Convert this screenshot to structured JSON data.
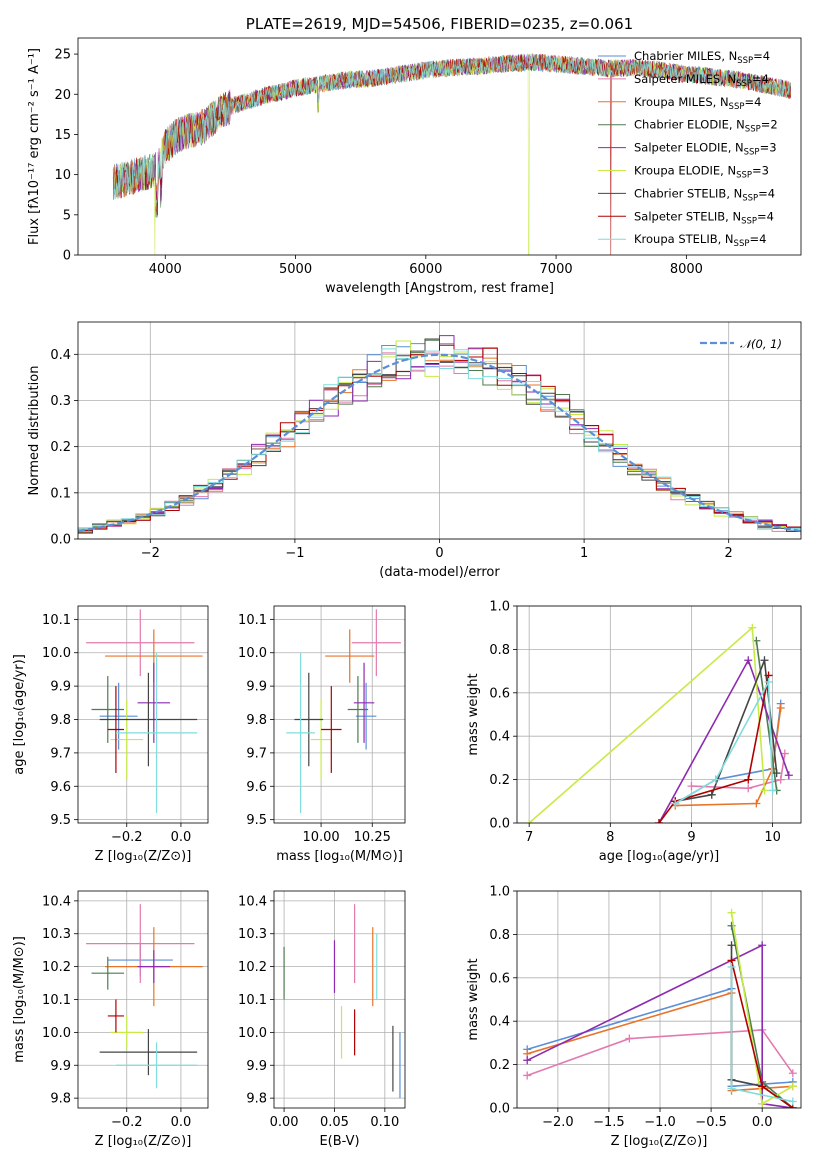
{
  "colors": {
    "Chabrier MILES": "#5b8fd6",
    "Salpeter MILES": "#e27aaf",
    "Kroupa MILES": "#e8742a",
    "Chabrier ELODIE": "#4e7b4e",
    "Salpeter ELODIE": "#8e2ab0",
    "Kroupa ELODIE": "#c7ea46",
    "Chabrier STELIB": "#444444",
    "Salpeter STELIB": "#b00000",
    "Kroupa STELIB": "#7fdddd"
  },
  "chart_data": [
    {
      "id": "spectrum",
      "type": "line",
      "title": "PLATE=2619, MJD=54506, FIBERID=0235, z=0.061",
      "xlabel": "wavelength [Angstrom, rest frame]",
      "ylabel": "Flux [fλ10⁻¹⁷ erg cm⁻² s⁻¹ A⁻¹]",
      "xlim": [
        3330,
        8880
      ],
      "ylim": [
        0,
        27
      ],
      "xticks": [
        4000,
        5000,
        6000,
        7000,
        8000
      ],
      "yticks": [
        0,
        5,
        10,
        15,
        20,
        25
      ],
      "grid": false,
      "legend_position": "top-right",
      "legend": [
        {
          "series": "Chabrier MILES",
          "label": "Chabrier MILES, N",
          "sub": "SSP",
          "suffix": "=4"
        },
        {
          "series": "Salpeter MILES",
          "label": "Salpeter MILES, N",
          "sub": "SSP",
          "suffix": "=4"
        },
        {
          "series": "Kroupa MILES",
          "label": "Kroupa MILES, N",
          "sub": "SSP",
          "suffix": "=4"
        },
        {
          "series": "Chabrier ELODIE",
          "label": "Chabrier ELODIE, N",
          "sub": "SSP",
          "suffix": "=2"
        },
        {
          "series": "Salpeter ELODIE",
          "label": "Salpeter ELODIE, N",
          "sub": "SSP",
          "suffix": "=3"
        },
        {
          "series": "Kroupa ELODIE",
          "label": "Kroupa ELODIE, N",
          "sub": "SSP",
          "suffix": "=3"
        },
        {
          "series": "Chabrier STELIB",
          "label": "Chabrier STELIB, N",
          "sub": "SSP",
          "suffix": "=4"
        },
        {
          "series": "Salpeter STELIB",
          "label": "Salpeter STELIB, N",
          "sub": "SSP",
          "suffix": "=4"
        },
        {
          "series": "Kroupa STELIB",
          "label": "Kroupa STELIB, N",
          "sub": "SSP",
          "suffix": "=4"
        }
      ],
      "data_continuum": {
        "x": [
          3600,
          3700,
          3800,
          3900,
          3950,
          4000,
          4100,
          4200,
          4300,
          4400,
          4500,
          4600,
          4700,
          4800,
          4900,
          5000,
          5200,
          5400,
          5600,
          5800,
          6000,
          6200,
          6400,
          6600,
          6800,
          7000,
          7200,
          7400,
          7600,
          7800,
          8000,
          8200,
          8400,
          8600,
          8800
        ],
        "y": [
          9,
          9.5,
          10,
          10.5,
          11,
          13.5,
          15,
          15.5,
          16,
          17.5,
          18.5,
          19,
          19.5,
          20,
          20.3,
          20.8,
          21.3,
          21.8,
          22,
          22.5,
          23,
          23.3,
          23.5,
          23.8,
          24,
          23.8,
          23.5,
          23.2,
          23.3,
          23,
          22.5,
          22.2,
          21.8,
          21.2,
          20.5
        ]
      },
      "bad_pixels": [
        {
          "x": 3920,
          "series": "Kroupa ELODIE"
        },
        {
          "x": 6790,
          "series": "Kroupa ELODIE"
        },
        {
          "x": 7420,
          "series": "Salpeter STELIB"
        }
      ]
    },
    {
      "id": "residuals",
      "type": "histogram",
      "xlabel": "(data-model)/error",
      "ylabel": "Normed distribution",
      "xlim": [
        -2.5,
        2.5
      ],
      "ylim": [
        0,
        0.47
      ],
      "xticks": [
        -2,
        -1,
        0,
        1,
        2
      ],
      "yticks": [
        0.0,
        0.1,
        0.2,
        0.3,
        0.4
      ],
      "grid": true,
      "legend_position": "top-right",
      "legend": [
        {
          "label": "𝒩(0, 1)",
          "color": "#5b8fd6",
          "style": "dashed"
        }
      ],
      "normal_reference": {
        "mean": 0,
        "sigma": 1
      },
      "bin_width": 0.1
    },
    {
      "id": "age-vs-Z",
      "type": "errorbar",
      "xlabel": "Z [log₁₀(Z/Z⊙)]",
      "ylabel": "age  [log₁₀(age/yr)]",
      "xlim": [
        -0.38,
        0.1
      ],
      "ylim": [
        9.49,
        10.14
      ],
      "xticks": [
        -0.2,
        0.0
      ],
      "yticks": [
        9.5,
        9.6,
        9.7,
        9.8,
        9.9,
        10.0,
        10.1
      ],
      "grid": true,
      "points": [
        {
          "series": "Chabrier MILES",
          "x": -0.23,
          "y": 9.81,
          "xerr": 0.07,
          "yerr": 0.1
        },
        {
          "series": "Salpeter MILES",
          "x": -0.15,
          "y": 10.03,
          "xerr": 0.2,
          "yerr": 0.1
        },
        {
          "series": "Kroupa MILES",
          "x": -0.1,
          "y": 9.99,
          "xerr": 0.18,
          "yerr": 0.08
        },
        {
          "series": "Chabrier ELODIE",
          "x": -0.27,
          "y": 9.83,
          "xerr": 0.06,
          "yerr": 0.1
        },
        {
          "series": "Salpeter ELODIE",
          "x": -0.1,
          "y": 9.85,
          "xerr": 0.06,
          "yerr": 0.12
        },
        {
          "series": "Kroupa ELODIE",
          "x": -0.2,
          "y": 9.74,
          "xerr": 0.06,
          "yerr": 0.12
        },
        {
          "series": "Chabrier STELIB",
          "x": -0.12,
          "y": 9.8,
          "xerr": 0.18,
          "yerr": 0.14
        },
        {
          "series": "Salpeter STELIB",
          "x": -0.24,
          "y": 9.77,
          "xerr": 0.03,
          "yerr": 0.13
        },
        {
          "series": "Kroupa STELIB",
          "x": -0.09,
          "y": 9.76,
          "xerr": 0.15,
          "yerr": 0.24
        }
      ]
    },
    {
      "id": "age-vs-mass",
      "type": "errorbar",
      "xlabel": "mass [log₁₀(M/M⊙)]",
      "ylabel": "",
      "xlim": [
        9.77,
        10.41
      ],
      "ylim": [
        9.49,
        10.14
      ],
      "xticks": [
        10.0,
        10.25
      ],
      "yticks": [
        9.5,
        9.6,
        9.7,
        9.8,
        9.9,
        10.0,
        10.1
      ],
      "grid": true,
      "points": [
        {
          "series": "Chabrier MILES",
          "x": 10.22,
          "y": 9.81,
          "xerr": 0.05,
          "yerr": 0.1
        },
        {
          "series": "Salpeter MILES",
          "x": 10.27,
          "y": 10.03,
          "xerr": 0.12,
          "yerr": 0.1
        },
        {
          "series": "Kroupa MILES",
          "x": 10.14,
          "y": 9.99,
          "xerr": 0.12,
          "yerr": 0.08
        },
        {
          "series": "Chabrier ELODIE",
          "x": 10.18,
          "y": 9.83,
          "xerr": 0.05,
          "yerr": 0.1
        },
        {
          "series": "Salpeter ELODIE",
          "x": 10.21,
          "y": 9.85,
          "xerr": 0.05,
          "yerr": 0.12
        },
        {
          "series": "Kroupa ELODIE",
          "x": 10.0,
          "y": 9.74,
          "xerr": 0.05,
          "yerr": 0.12
        },
        {
          "series": "Chabrier STELIB",
          "x": 9.94,
          "y": 9.8,
          "xerr": 0.07,
          "yerr": 0.14
        },
        {
          "series": "Salpeter STELIB",
          "x": 10.05,
          "y": 9.77,
          "xerr": 0.05,
          "yerr": 0.13
        },
        {
          "series": "Kroupa STELIB",
          "x": 9.9,
          "y": 9.76,
          "xerr": 0.07,
          "yerr": 0.24
        }
      ]
    },
    {
      "id": "mass-weight-vs-age",
      "type": "line",
      "xlabel": "age  [log₁₀(age/yr)]",
      "ylabel": "mass weight",
      "xlim": [
        6.85,
        10.35
      ],
      "ylim": [
        0,
        1.0
      ],
      "xticks": [
        7,
        8,
        9,
        10
      ],
      "yticks": [
        0.0,
        0.2,
        0.4,
        0.6,
        0.8,
        1.0
      ],
      "grid": true,
      "series": [
        {
          "name": "Chabrier MILES",
          "x": [
            8.8,
            9.3,
            10.0,
            10.1
          ],
          "y": [
            0.09,
            0.2,
            0.25,
            0.55
          ]
        },
        {
          "name": "Salpeter MILES",
          "x": [
            9.0,
            9.7,
            10.1,
            10.15
          ],
          "y": [
            0.17,
            0.16,
            0.2,
            0.32
          ]
        },
        {
          "name": "Kroupa MILES",
          "x": [
            8.8,
            9.8,
            10.0,
            10.1
          ],
          "y": [
            0.08,
            0.09,
            0.25,
            0.53
          ]
        },
        {
          "name": "Chabrier ELODIE",
          "x": [
            9.8,
            10.05
          ],
          "y": [
            0.84,
            0.15
          ]
        },
        {
          "name": "Salpeter ELODIE",
          "x": [
            8.6,
            9.7,
            10.2
          ],
          "y": [
            0.0,
            0.75,
            0.22
          ]
        },
        {
          "name": "Kroupa ELODIE",
          "x": [
            7.0,
            9.75,
            9.9
          ],
          "y": [
            0.0,
            0.9,
            0.15
          ]
        },
        {
          "name": "Chabrier STELIB",
          "x": [
            8.8,
            9.25,
            9.9,
            10.05
          ],
          "y": [
            0.1,
            0.13,
            0.75,
            0.23
          ]
        },
        {
          "name": "Salpeter STELIB",
          "x": [
            8.6,
            8.8,
            9.7,
            9.95
          ],
          "y": [
            0.0,
            0.1,
            0.2,
            0.68
          ]
        },
        {
          "name": "Kroupa STELIB",
          "x": [
            8.8,
            9.3,
            9.95,
            10.0
          ],
          "y": [
            0.09,
            0.2,
            0.65,
            0.15
          ]
        }
      ]
    },
    {
      "id": "mass-vs-Z",
      "type": "errorbar",
      "xlabel": "Z [log₁₀(Z/Z⊙)]",
      "ylabel": "mass [log₁₀(M/M⊙)]",
      "xlim": [
        -0.38,
        0.1
      ],
      "ylim": [
        9.77,
        10.43
      ],
      "xticks": [
        -0.2,
        0.0
      ],
      "yticks": [
        9.8,
        9.9,
        10.0,
        10.1,
        10.2,
        10.3,
        10.4
      ],
      "grid": true,
      "points": [
        {
          "series": "Chabrier MILES",
          "x": -0.15,
          "y": 10.22,
          "xerr": 0.12,
          "yerr": 0.05
        },
        {
          "series": "Salpeter MILES",
          "x": -0.15,
          "y": 10.27,
          "xerr": 0.2,
          "yerr": 0.12
        },
        {
          "series": "Kroupa MILES",
          "x": -0.1,
          "y": 10.2,
          "xerr": 0.18,
          "yerr": 0.12
        },
        {
          "series": "Chabrier ELODIE",
          "x": -0.27,
          "y": 10.18,
          "xerr": 0.06,
          "yerr": 0.05
        },
        {
          "series": "Salpeter ELODIE",
          "x": -0.1,
          "y": 10.2,
          "xerr": 0.06,
          "yerr": 0.05
        },
        {
          "series": "Kroupa ELODIE",
          "x": -0.2,
          "y": 10.0,
          "xerr": 0.06,
          "yerr": 0.05
        },
        {
          "series": "Chabrier STELIB",
          "x": -0.12,
          "y": 9.94,
          "xerr": 0.18,
          "yerr": 0.07
        },
        {
          "series": "Salpeter STELIB",
          "x": -0.24,
          "y": 10.05,
          "xerr": 0.03,
          "yerr": 0.05
        },
        {
          "series": "Kroupa STELIB",
          "x": -0.09,
          "y": 9.9,
          "xerr": 0.15,
          "yerr": 0.07
        }
      ]
    },
    {
      "id": "mass-vs-EBV",
      "type": "errorbar",
      "xlabel": "E(B-V)",
      "ylabel": "",
      "xlim": [
        -0.01,
        0.12
      ],
      "ylim": [
        9.77,
        10.43
      ],
      "xticks": [
        0.0,
        0.05,
        0.1
      ],
      "xticklabels": [
        "0.00",
        "0.05",
        "0.10"
      ],
      "yticks": [
        9.8,
        9.9,
        10.0,
        10.1,
        10.2,
        10.3,
        10.4
      ],
      "grid": true,
      "points": [
        {
          "series": "Chabrier MILES",
          "x": 0.115,
          "y": 9.9,
          "xerr": 0,
          "yerr": 0.1
        },
        {
          "series": "Salpeter MILES",
          "x": 0.07,
          "y": 10.27,
          "xerr": 0,
          "yerr": 0.12
        },
        {
          "series": "Kroupa MILES",
          "x": 0.088,
          "y": 10.2,
          "xerr": 0,
          "yerr": 0.12
        },
        {
          "series": "Chabrier ELODIE",
          "x": 0.0,
          "y": 10.18,
          "xerr": 0,
          "yerr": 0.08
        },
        {
          "series": "Salpeter ELODIE",
          "x": 0.05,
          "y": 10.2,
          "xerr": 0,
          "yerr": 0.08
        },
        {
          "series": "Kroupa ELODIE",
          "x": 0.057,
          "y": 10.0,
          "xerr": 0,
          "yerr": 0.08
        },
        {
          "series": "Chabrier STELIB",
          "x": 0.108,
          "y": 9.92,
          "xerr": 0,
          "yerr": 0.1
        },
        {
          "series": "Salpeter STELIB",
          "x": 0.07,
          "y": 10.0,
          "xerr": 0,
          "yerr": 0.07
        },
        {
          "series": "Kroupa STELIB",
          "x": 0.092,
          "y": 10.2,
          "xerr": 0,
          "yerr": 0.1
        }
      ]
    },
    {
      "id": "mass-weight-vs-Z",
      "type": "line",
      "xlabel": "Z [log₁₀(Z/Z⊙)]",
      "ylabel": "mass weight",
      "xlim": [
        -2.4,
        0.38
      ],
      "ylim": [
        0,
        1.0
      ],
      "xticks": [
        -2.0,
        -1.5,
        -1.0,
        -0.5,
        0.0
      ],
      "yticks": [
        0.0,
        0.2,
        0.4,
        0.6,
        0.8,
        1.0
      ],
      "grid": true,
      "series": [
        {
          "name": "Chabrier MILES",
          "x": [
            -2.3,
            -0.3,
            -0.3,
            0.3
          ],
          "y": [
            0.27,
            0.55,
            0.1,
            0.12
          ]
        },
        {
          "name": "Salpeter MILES",
          "x": [
            -2.3,
            -1.3,
            0.0,
            0.3
          ],
          "y": [
            0.15,
            0.32,
            0.36,
            0.16
          ]
        },
        {
          "name": "Kroupa MILES",
          "x": [
            -2.3,
            -0.3,
            -0.3,
            0.3
          ],
          "y": [
            0.25,
            0.53,
            0.08,
            0.1
          ]
        },
        {
          "name": "Chabrier ELODIE",
          "x": [
            -0.3,
            0.0,
            0.3
          ],
          "y": [
            0.84,
            0.12,
            0.0
          ]
        },
        {
          "name": "Salpeter ELODIE",
          "x": [
            -2.3,
            0.0,
            0.0,
            0.3
          ],
          "y": [
            0.22,
            0.75,
            0.02,
            0.0
          ]
        },
        {
          "name": "Kroupa ELODIE",
          "x": [
            -0.3,
            0.0,
            0.3
          ],
          "y": [
            0.9,
            0.02,
            0.1
          ]
        },
        {
          "name": "Chabrier STELIB",
          "x": [
            -0.3,
            -0.3,
            0.0,
            0.3
          ],
          "y": [
            0.75,
            0.13,
            0.1,
            0.0
          ]
        },
        {
          "name": "Salpeter STELIB",
          "x": [
            -0.3,
            0.0,
            0.3
          ],
          "y": [
            0.68,
            0.1,
            0.0
          ]
        },
        {
          "name": "Kroupa STELIB",
          "x": [
            -0.3,
            -0.3,
            0.3
          ],
          "y": [
            0.65,
            0.09,
            0.03
          ]
        }
      ]
    }
  ]
}
